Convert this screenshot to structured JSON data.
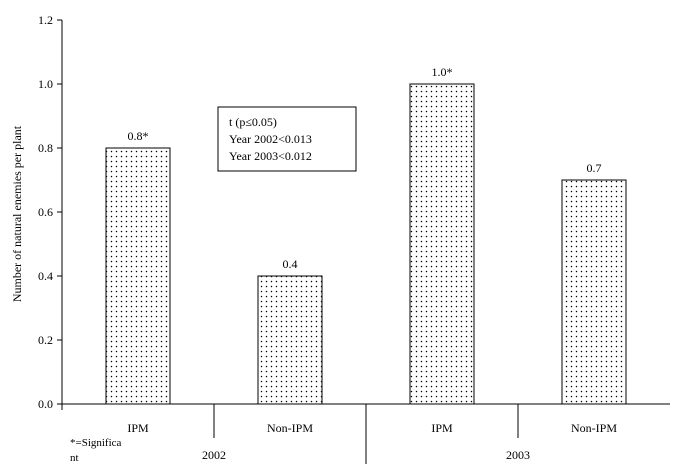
{
  "chart_data": {
    "type": "bar",
    "ylabel": "Number of natural enemies per plant",
    "ylim": [
      0,
      1.2
    ],
    "yticks": [
      "0.0",
      "0.2",
      "0.4",
      "0.6",
      "0.8",
      "1.0",
      "1.2"
    ],
    "grid": false,
    "categories": [
      "IPM",
      "Non-IPM",
      "IPM",
      "Non-IPM"
    ],
    "groups": [
      "2002",
      "2003"
    ],
    "values": [
      0.8,
      0.4,
      1.0,
      0.7
    ],
    "value_labels": [
      "0.8*",
      "0.4",
      "1.0*",
      "0.7"
    ],
    "bar_fill": "dotted",
    "footnote_lines": [
      "*=Significa",
      "nt"
    ],
    "annotation_lines": [
      "t (p≤0.05)",
      "Year 2002<0.013",
      "Year 2003<0.012"
    ]
  }
}
